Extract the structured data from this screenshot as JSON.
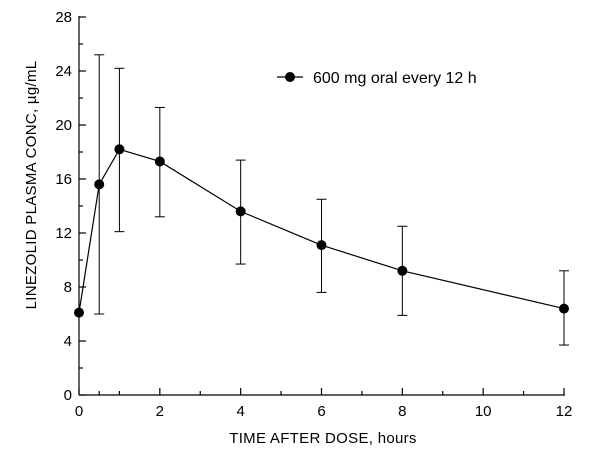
{
  "chart_data": {
    "type": "line",
    "xlabel": "TIME AFTER DOSE, hours",
    "ylabel": "LINEZOLID PLASMA CONC, µg/mL",
    "xlim": [
      0,
      12
    ],
    "ylim": [
      0,
      28
    ],
    "xticks": [
      0,
      2,
      4,
      6,
      8,
      10,
      12
    ],
    "yticks": [
      0,
      4,
      8,
      12,
      16,
      20,
      24,
      28
    ],
    "x_minor_ticks": [
      0.5,
      1,
      3,
      5,
      7,
      9,
      11
    ],
    "y_minor_ticks": [
      2,
      6,
      10,
      14,
      18,
      22,
      26
    ],
    "grid": false,
    "legend_position": "top-right",
    "series": [
      {
        "name": "600 mg oral every 12 h",
        "marker": "filled-circle",
        "color": "#000000",
        "points": [
          {
            "x": 0,
            "y": 6.1,
            "lower": 6.1,
            "upper": 6.1
          },
          {
            "x": 0.5,
            "y": 15.6,
            "lower": 6.0,
            "upper": 25.2
          },
          {
            "x": 1,
            "y": 18.2,
            "lower": 12.1,
            "upper": 24.2
          },
          {
            "x": 2,
            "y": 17.3,
            "lower": 13.2,
            "upper": 21.3
          },
          {
            "x": 4,
            "y": 13.6,
            "lower": 9.7,
            "upper": 17.4
          },
          {
            "x": 6,
            "y": 11.1,
            "lower": 7.6,
            "upper": 14.5
          },
          {
            "x": 8,
            "y": 9.2,
            "lower": 5.9,
            "upper": 12.5
          },
          {
            "x": 12,
            "y": 6.4,
            "lower": 3.7,
            "upper": 9.2
          }
        ]
      }
    ]
  }
}
